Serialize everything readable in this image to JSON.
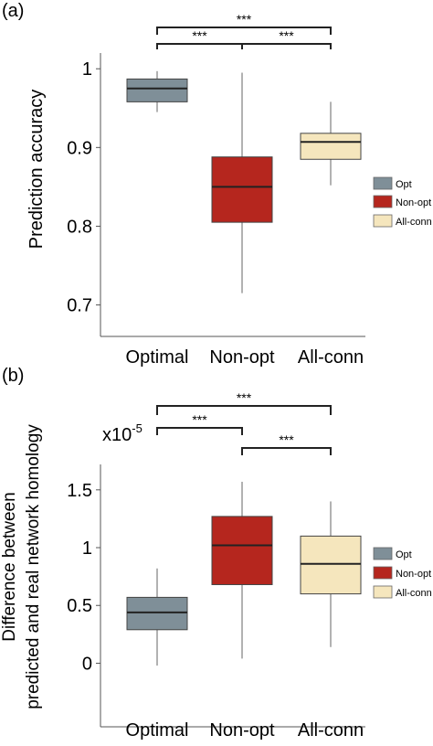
{
  "chart_data": [
    {
      "panel_label": "(a)",
      "type": "boxplot",
      "ylabel": "Prediction accuracy",
      "xlabel": "",
      "categories": [
        "Optimal",
        "Non-opt",
        "All-conn"
      ],
      "yticks": [
        "0.7",
        "0.8",
        "0.9",
        "1"
      ],
      "ylim": [
        0.66,
        1.02
      ],
      "boxes": [
        {
          "min": 0.945,
          "q1": 0.958,
          "median": 0.975,
          "q3": 0.987,
          "max": 0.997,
          "color": "#7f8f98"
        },
        {
          "min": 0.715,
          "q1": 0.805,
          "median": 0.85,
          "q3": 0.888,
          "max": 0.995,
          "color": "#b5261e"
        },
        {
          "min": 0.852,
          "q1": 0.885,
          "median": 0.907,
          "q3": 0.918,
          "max": 0.958,
          "color": "#f5e6bd"
        }
      ],
      "legend": {
        "placement": "right",
        "entries": [
          "Opt",
          "Non-opt",
          "All-conn"
        ]
      },
      "significance": [
        {
          "from": 0,
          "to": 2,
          "label": "***"
        },
        {
          "from": 0,
          "to": 1,
          "label": "***"
        },
        {
          "from": 1,
          "to": 2,
          "label": "***"
        }
      ]
    },
    {
      "panel_label": "(b)",
      "type": "boxplot",
      "ylabel_lines": [
        "Difference between",
        "predicted and real network homology"
      ],
      "xlabel": "",
      "scale_prefix": "x10",
      "scale_exponent": "-5",
      "categories": [
        "Optimal",
        "Non-opt",
        "All-conn"
      ],
      "yticks": [
        "0",
        "0.5",
        "1",
        "1.5"
      ],
      "ylim": [
        -0.55,
        1.72
      ],
      "boxes": [
        {
          "min": -0.02,
          "q1": 0.29,
          "median": 0.44,
          "q3": 0.57,
          "max": 0.82,
          "color": "#7f8f98"
        },
        {
          "min": 0.04,
          "q1": 0.68,
          "median": 1.02,
          "q3": 1.27,
          "max": 1.57,
          "color": "#b5261e"
        },
        {
          "min": 0.14,
          "q1": 0.6,
          "median": 0.86,
          "q3": 1.1,
          "max": 1.4,
          "color": "#f5e6bd"
        }
      ],
      "legend": {
        "placement": "right",
        "entries": [
          "Opt",
          "Non-opt",
          "All-conn"
        ]
      },
      "significance": [
        {
          "from": 0,
          "to": 2,
          "label": "***"
        },
        {
          "from": 0,
          "to": 1,
          "label": "***"
        },
        {
          "from": 1,
          "to": 2,
          "label": "***"
        }
      ]
    }
  ]
}
